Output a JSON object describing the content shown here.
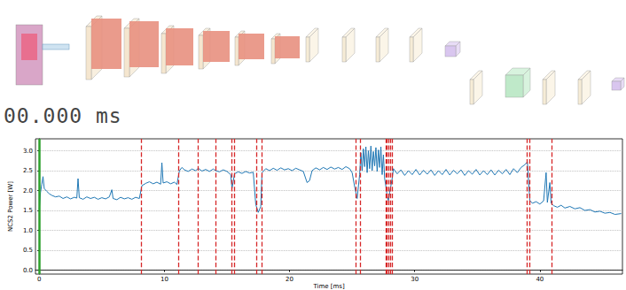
{
  "timer": "00.000 ms",
  "chart_data": {
    "type": "line",
    "x_label": "Time [ms]",
    "y_label": "NCS2 Power [W]",
    "color": "#1f77b4",
    "line_style": "solid",
    "grid": true,
    "xlim": [
      -0.3,
      46.6
    ],
    "xticks": [
      0,
      10,
      20,
      30,
      40
    ],
    "ylim": [
      -0.1,
      3.3
    ],
    "yticks": [
      {
        "value": 0,
        "label": "0.0"
      },
      0.5,
      {
        "value": 1,
        "label": "1.0"
      },
      1.5,
      {
        "value": 2,
        "label": "2.0"
      },
      2.5,
      {
        "value": 3,
        "label": "3.0"
      }
    ],
    "x": [
      0.0,
      0.1,
      0.2,
      0.3,
      0.4,
      0.6,
      0.8,
      1.0,
      1.3,
      1.6,
      1.9,
      2.2,
      2.5,
      2.8,
      3.0,
      3.1,
      3.2,
      3.5,
      3.8,
      4.1,
      4.4,
      4.7,
      5.0,
      5.3,
      5.6,
      5.8,
      5.9,
      6.2,
      6.5,
      6.8,
      7.1,
      7.4,
      7.7,
      8.0,
      8.2,
      8.5,
      8.8,
      9.1,
      9.4,
      9.7,
      9.8,
      9.9,
      10.2,
      10.5,
      10.8,
      11.0,
      11.2,
      11.4,
      11.6,
      11.9,
      12.2,
      12.5,
      12.7,
      13.0,
      13.3,
      13.6,
      13.9,
      14.1,
      14.4,
      14.7,
      15.0,
      15.3,
      15.4,
      15.5,
      15.6,
      15.9,
      16.2,
      16.5,
      16.8,
      17.1,
      17.3,
      17.5,
      17.7,
      17.8,
      18.1,
      18.4,
      18.7,
      19.0,
      19.3,
      19.6,
      19.9,
      20.2,
      20.5,
      20.8,
      21.1,
      21.4,
      21.6,
      21.8,
      22.1,
      22.4,
      22.7,
      23.0,
      23.3,
      23.6,
      23.9,
      24.2,
      24.5,
      24.8,
      25.0,
      25.2,
      25.4,
      25.6,
      25.7,
      25.8,
      25.9,
      26.0,
      26.1,
      26.2,
      26.3,
      26.4,
      26.5,
      26.6,
      26.7,
      26.8,
      26.9,
      27.0,
      27.1,
      27.2,
      27.3,
      27.4,
      27.5,
      27.6,
      27.7,
      27.8,
      27.9,
      28.0,
      28.2,
      28.3,
      28.6,
      28.9,
      29.2,
      29.5,
      29.8,
      30.1,
      30.4,
      30.7,
      31.0,
      31.3,
      31.6,
      31.9,
      32.2,
      32.5,
      32.8,
      33.1,
      33.4,
      33.7,
      34.0,
      34.3,
      34.6,
      34.9,
      35.2,
      35.5,
      35.8,
      36.1,
      36.4,
      36.7,
      37.0,
      37.3,
      37.6,
      37.9,
      38.2,
      38.5,
      38.8,
      39.0,
      39.2,
      39.4,
      39.7,
      40.0,
      40.3,
      40.5,
      40.6,
      40.8,
      40.9,
      41.1,
      41.4,
      41.7,
      42.0,
      42.4,
      42.8,
      43.2,
      43.6,
      44.0,
      44.4,
      44.8,
      45.2,
      45.6,
      46.0,
      46.5
    ],
    "values": [
      1.52,
      1.95,
      2.15,
      2.35,
      2.05,
      1.98,
      1.92,
      1.88,
      1.84,
      1.86,
      1.8,
      1.84,
      1.79,
      1.83,
      1.81,
      2.3,
      1.82,
      1.78,
      1.84,
      1.8,
      1.83,
      1.78,
      1.82,
      1.79,
      1.84,
      2.02,
      1.8,
      1.77,
      1.83,
      1.79,
      1.82,
      1.78,
      1.83,
      1.8,
      2.12,
      2.18,
      2.22,
      2.17,
      2.21,
      2.16,
      2.7,
      2.19,
      2.22,
      2.17,
      2.21,
      2.15,
      2.5,
      2.58,
      2.52,
      2.48,
      2.54,
      2.5,
      2.56,
      2.49,
      2.53,
      2.48,
      2.54,
      2.5,
      2.47,
      2.52,
      2.48,
      2.4,
      2.05,
      2.22,
      2.42,
      2.47,
      2.43,
      2.48,
      2.44,
      2.46,
      1.65,
      1.45,
      1.6,
      2.45,
      2.55,
      2.5,
      2.56,
      2.51,
      2.57,
      2.52,
      2.55,
      2.5,
      2.56,
      2.52,
      2.48,
      2.2,
      2.25,
      2.5,
      2.57,
      2.52,
      2.58,
      2.53,
      2.59,
      2.54,
      2.58,
      2.53,
      2.6,
      2.55,
      2.45,
      2.1,
      1.8,
      2.4,
      2.95,
      2.5,
      3.05,
      2.6,
      3.1,
      2.45,
      3.0,
      2.55,
      3.12,
      2.5,
      2.98,
      2.62,
      3.08,
      2.48,
      3.02,
      2.58,
      3.1,
      2.4,
      2.9,
      2.3,
      2.1,
      1.85,
      1.75,
      1.95,
      2.3,
      2.55,
      2.42,
      2.52,
      2.38,
      2.5,
      2.4,
      2.53,
      2.39,
      2.51,
      2.41,
      2.52,
      2.38,
      2.5,
      2.4,
      2.53,
      2.39,
      2.51,
      2.42,
      2.52,
      2.38,
      2.5,
      2.41,
      2.53,
      2.39,
      2.5,
      2.4,
      2.52,
      2.39,
      2.51,
      2.42,
      2.53,
      2.4,
      2.55,
      2.45,
      2.58,
      2.65,
      2.72,
      1.75,
      1.68,
      1.72,
      1.66,
      1.74,
      2.45,
      1.7,
      2.2,
      1.68,
      1.62,
      1.58,
      1.63,
      1.56,
      1.6,
      1.54,
      1.57,
      1.5,
      1.52,
      1.46,
      1.48,
      1.43,
      1.45,
      1.4,
      1.42
    ],
    "vlines": [
      {
        "x": [
          8.15,
          11.15,
          12.68,
          14.08,
          15.4,
          15.6,
          17.35,
          17.77,
          25.3,
          25.64,
          27.67,
          27.8,
          27.94,
          28.08,
          28.22,
          39.0,
          39.2,
          40.95
        ],
        "color": "#d62728",
        "line_style": "dashed"
      },
      {
        "x": [
          0
        ],
        "color": "#2ca02c",
        "line_style": "solid"
      }
    ]
  }
}
